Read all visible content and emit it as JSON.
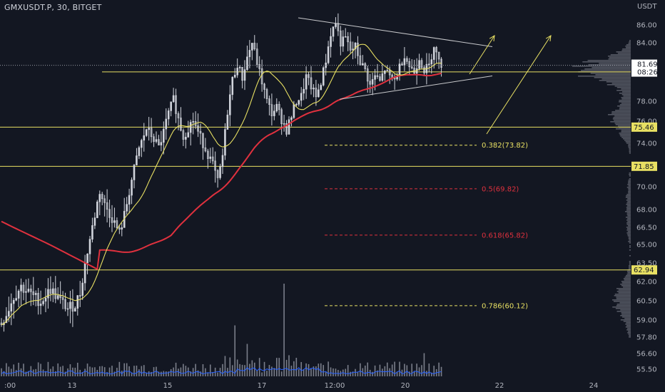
{
  "header": {
    "title": "GMXUSDT.P, 30, BITGET",
    "currency": "USDT"
  },
  "colors": {
    "background": "#131722",
    "up": "#d1d4dc",
    "ma_fast": "#e8e063",
    "ma_slow": "#e0313e",
    "level": "#e8e063",
    "trend": "#c8c9cc",
    "fib_gold": "#e8e063",
    "fib_red": "#e0313e",
    "volume": "#7a7e8a",
    "volume_ma": "#2962ff",
    "profile": "#6a6d78",
    "price_tag": "#ffffff"
  },
  "chart_data": {
    "type": "candlestick",
    "symbol": "GMXUSDT.P",
    "timeframe": "30",
    "exchange": "BITGET",
    "ylim": [
      55.0,
      87.2
    ],
    "y_ticks": [
      86.0,
      84.0,
      78.0,
      76.0,
      74.0,
      72.0,
      70.0,
      68.0,
      66.5,
      65.0,
      63.5,
      62.0,
      60.5,
      59.0,
      57.8,
      56.6,
      55.5
    ],
    "y_tick_labels": [
      "86.00",
      "84.00",
      "78.00",
      "76.00",
      "74.00",
      "72.00",
      "70.00",
      "68.00",
      "66.50",
      "65.00",
      "63.50",
      "62.00",
      "60.50",
      "59.00",
      "57.80",
      "56.60",
      "55.50"
    ],
    "x_tick_labels": [
      ":00",
      "13",
      "15",
      "17",
      "12:00",
      "20",
      "22",
      "24"
    ],
    "horizontal_levels": [
      {
        "price": 75.46,
        "label": "75.46"
      },
      {
        "price": 71.85,
        "label": "71.85"
      },
      {
        "price": 62.94,
        "label": "62.94"
      },
      {
        "price": 81.01,
        "label": "81.01"
      }
    ],
    "last_price": {
      "price": 81.69,
      "label": "81.69",
      "countdown": "08:26"
    },
    "fibonacci": [
      {
        "label": "0.382(73.82)",
        "price": 73.82,
        "color": "gold"
      },
      {
        "label": "0.5(69.82)",
        "price": 69.82,
        "color": "red"
      },
      {
        "label": "0.618(65.82)",
        "price": 65.82,
        "color": "red"
      },
      {
        "label": "0.786(60.12)",
        "price": 60.12,
        "color": "gold"
      }
    ],
    "triangle": {
      "upper": [
        [
          86.8,
          0
        ],
        [
          83.6,
          1
        ]
      ],
      "lower": [
        [
          78.2,
          0
        ],
        [
          80.6,
          1
        ]
      ]
    },
    "close_path": [
      [
        0,
        58.8
      ],
      [
        2,
        59.5
      ],
      [
        5,
        60.8
      ],
      [
        8,
        61.6
      ],
      [
        12,
        61.0
      ],
      [
        16,
        60.4
      ],
      [
        20,
        61.4
      ],
      [
        24,
        60.5
      ],
      [
        27,
        59.9
      ],
      [
        30,
        60.2
      ],
      [
        32,
        61.1
      ],
      [
        34,
        63.4
      ],
      [
        37,
        66.5
      ],
      [
        40,
        69.6
      ],
      [
        42,
        68.4
      ],
      [
        45,
        67.3
      ],
      [
        48,
        66.0
      ],
      [
        50,
        67.5
      ],
      [
        53,
        70.6
      ],
      [
        56,
        73.5
      ],
      [
        59,
        75.3
      ],
      [
        62,
        74.4
      ],
      [
        64,
        73.6
      ],
      [
        66,
        75.0
      ],
      [
        68,
        76.8
      ],
      [
        70,
        78.2
      ],
      [
        72,
        76.2
      ],
      [
        74,
        74.6
      ],
      [
        76,
        75.4
      ],
      [
        78,
        76.1
      ],
      [
        80,
        75.0
      ],
      [
        82,
        74.0
      ],
      [
        84,
        73.0
      ],
      [
        86,
        72.0
      ],
      [
        88,
        70.4
      ],
      [
        90,
        72.8
      ],
      [
        92,
        77.0
      ],
      [
        94,
        80.2
      ],
      [
        96,
        81.8
      ],
      [
        98,
        80.4
      ],
      [
        100,
        82.5
      ],
      [
        102,
        84.0
      ],
      [
        104,
        82.0
      ],
      [
        106,
        80.0
      ],
      [
        108,
        78.0
      ],
      [
        110,
        76.8
      ],
      [
        112,
        77.4
      ],
      [
        114,
        76.2
      ],
      [
        116,
        75.2
      ],
      [
        118,
        76.5
      ],
      [
        120,
        78.0
      ],
      [
        122,
        78.5
      ],
      [
        124,
        80.5
      ],
      [
        126,
        79.5
      ],
      [
        128,
        78.4
      ],
      [
        130,
        80.0
      ],
      [
        132,
        82.2
      ],
      [
        134,
        85.0
      ],
      [
        136,
        86.3
      ],
      [
        138,
        84.0
      ],
      [
        140,
        84.5
      ],
      [
        142,
        83.2
      ],
      [
        144,
        83.6
      ],
      [
        146,
        82.0
      ],
      [
        148,
        81.2
      ],
      [
        150,
        79.6
      ],
      [
        152,
        80.6
      ],
      [
        154,
        80.0
      ],
      [
        156,
        81.3
      ],
      [
        158,
        80.4
      ],
      [
        160,
        80.2
      ],
      [
        162,
        81.5
      ],
      [
        164,
        82.8
      ],
      [
        166,
        81.6
      ],
      [
        168,
        81.0
      ],
      [
        170,
        82.5
      ],
      [
        172,
        81.2
      ],
      [
        174,
        81.6
      ],
      [
        176,
        83.8
      ],
      [
        178,
        82.0
      ],
      [
        180,
        81.5
      ]
    ],
    "volume_spikes": [
      [
        95,
        0.55
      ],
      [
        100,
        0.35
      ],
      [
        115,
        1.0
      ],
      [
        120,
        0.2
      ],
      [
        172,
        0.25
      ]
    ],
    "volume_profile_peak_price": 81.3
  }
}
